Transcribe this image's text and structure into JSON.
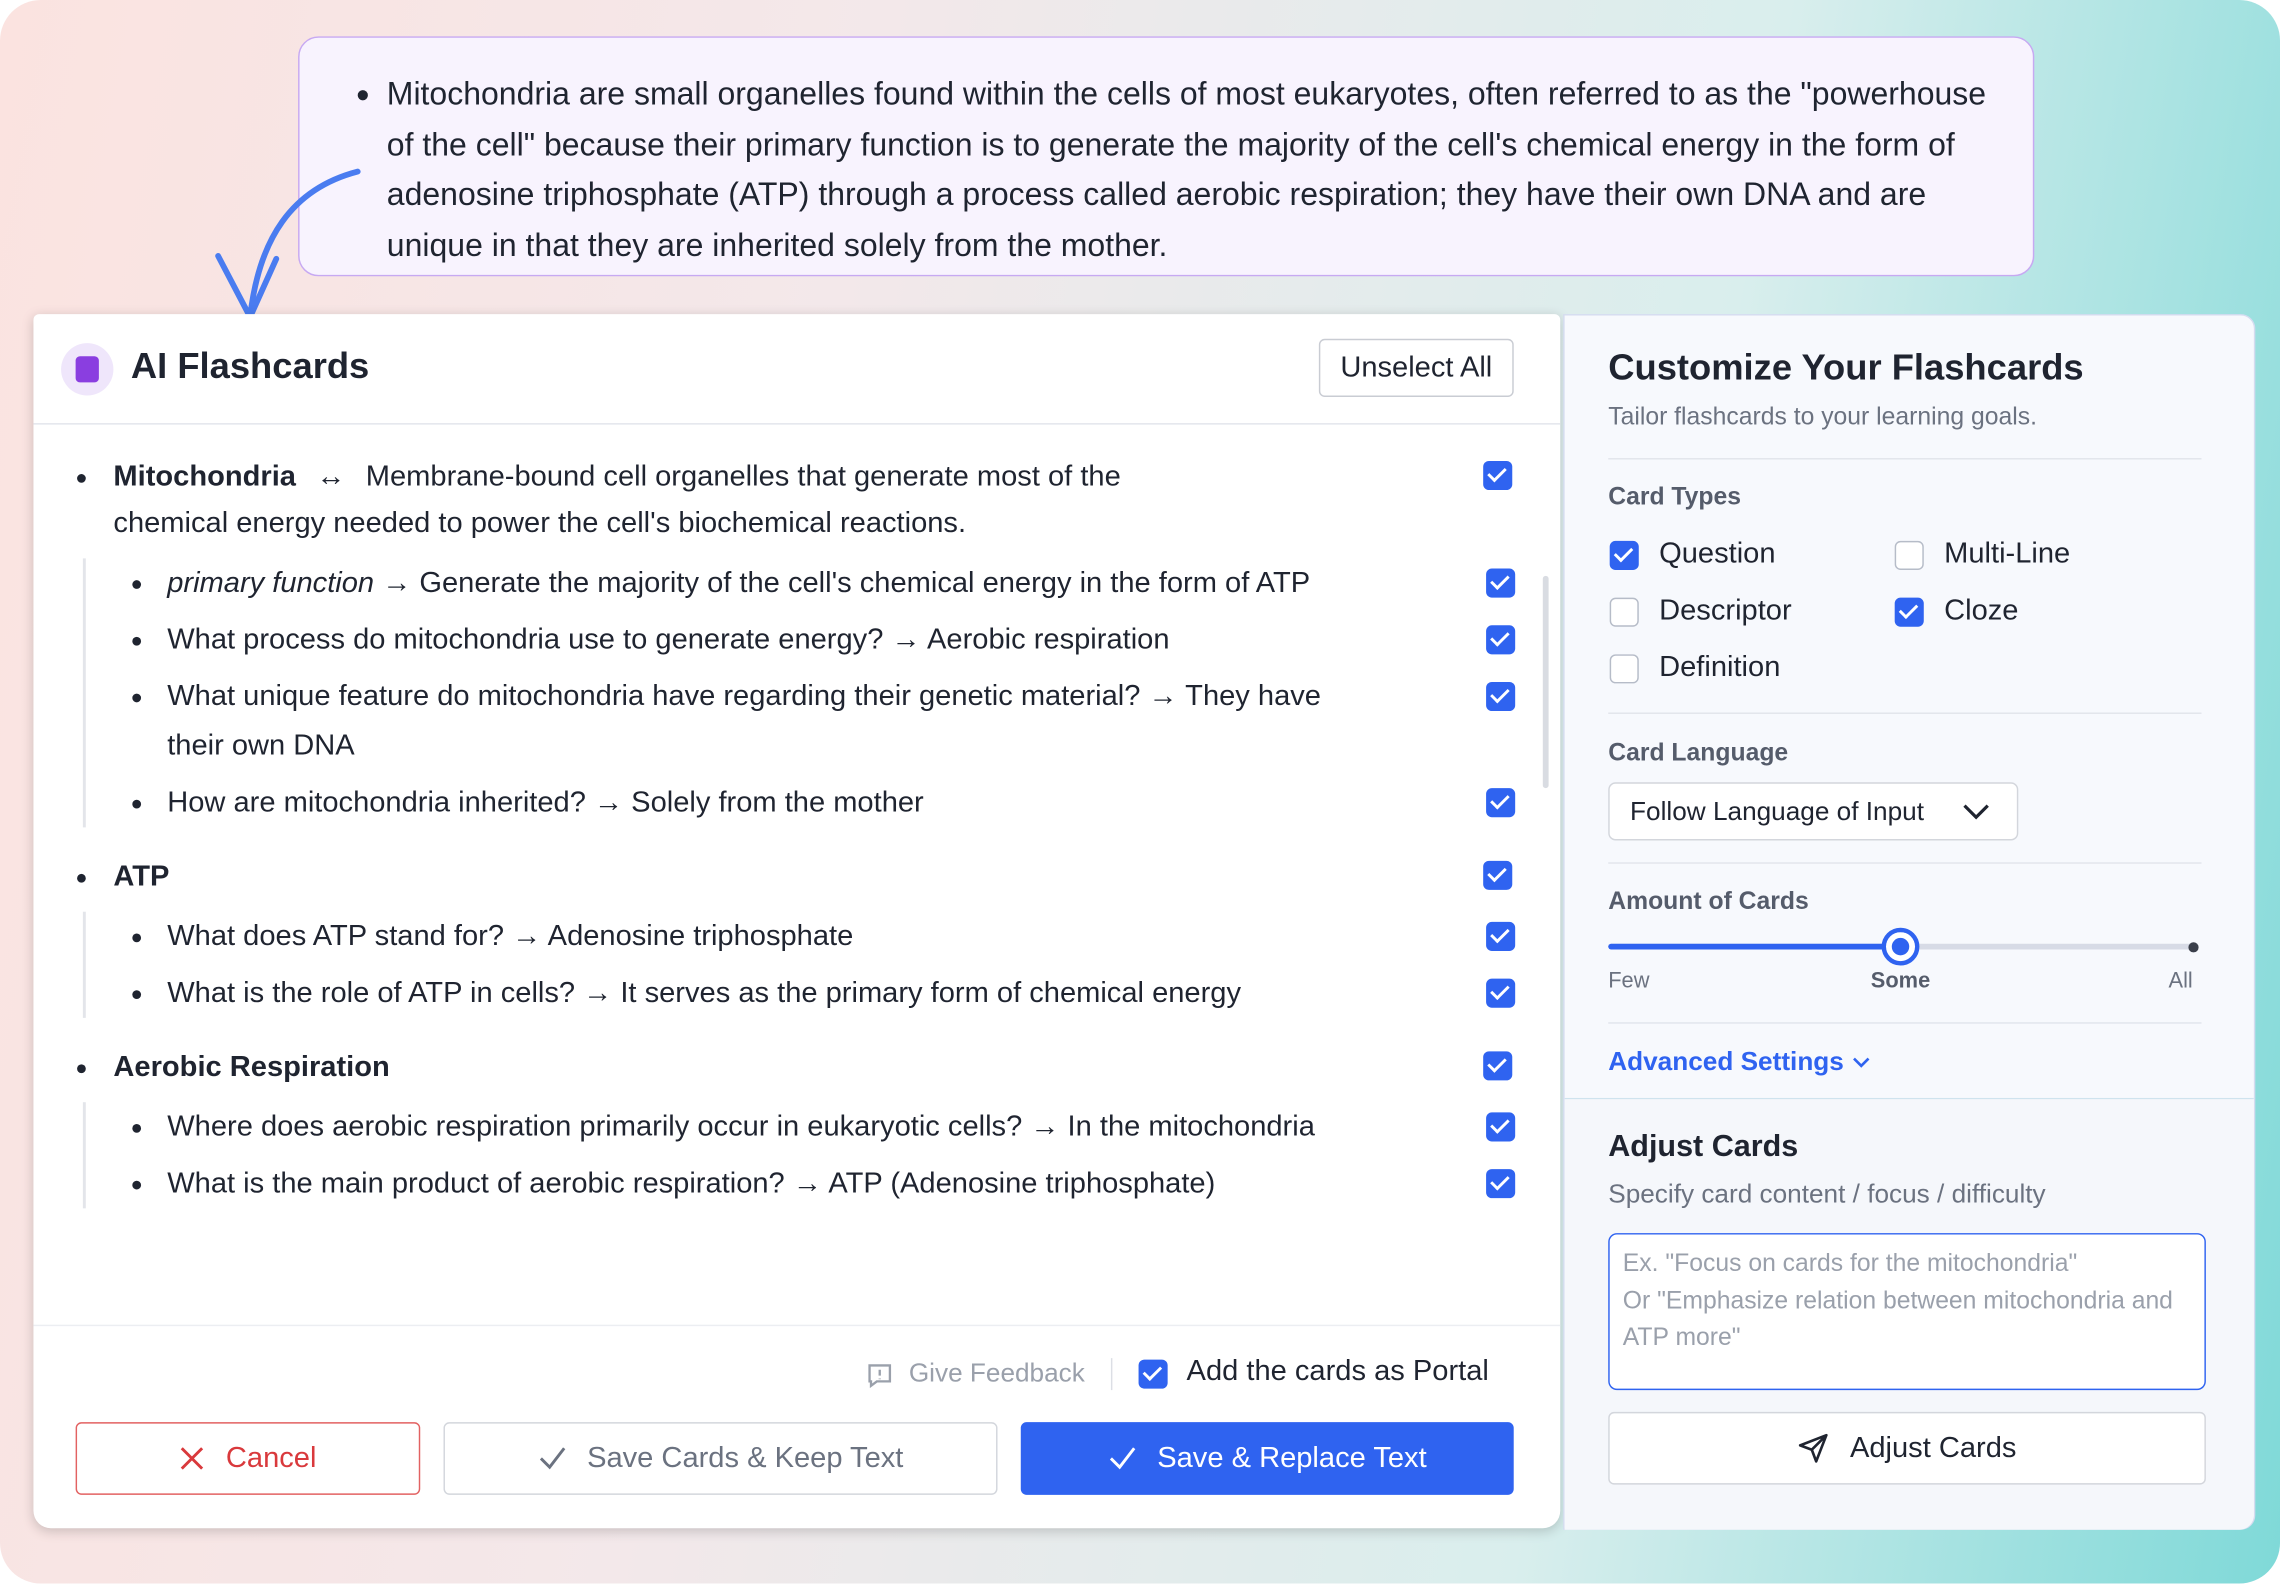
{
  "source_note": {
    "text": "Mitochondria are small organelles found within the cells of most eukaryotes, often referred to as the \"powerhouse of the cell\" because their primary function is to generate the majority of the cell's chemical energy in the form of adenosine triphosphate (ATP) through a process called aerobic respiration; they have their own DNA and are unique in that they are inherited solely from the mother."
  },
  "flashcards_panel": {
    "title": "AI Flashcards",
    "unselect_all": "Unselect All",
    "separator": "↔",
    "arrow": "→",
    "groups": [
      {
        "term": "Mitochondria",
        "definition": "Membrane-bound cell organelles that generate most of the chemical energy needed to power the cell's biochemical reactions.",
        "checked": true,
        "cards": [
          {
            "question": "primary function",
            "italic": true,
            "answer": "Generate the majority of the cell's chemical energy in the form of ATP",
            "checked": true
          },
          {
            "question": "What process do mitochondria use to generate energy?",
            "answer": "Aerobic respiration",
            "checked": true
          },
          {
            "question": "What unique feature do mitochondria have regarding their genetic material?",
            "answer": "They have their own DNA",
            "checked": true
          },
          {
            "question": "How are mitochondria inherited?",
            "answer": "Solely from the mother",
            "checked": true
          }
        ]
      },
      {
        "term": "ATP",
        "checked": true,
        "cards": [
          {
            "question": "What does ATP stand for?",
            "answer": "Adenosine triphosphate",
            "checked": true
          },
          {
            "question": "What is the role of ATP in cells?",
            "answer": "It serves as the primary form of chemical energy",
            "checked": true
          }
        ]
      },
      {
        "term": "Aerobic Respiration",
        "checked": true,
        "cards": [
          {
            "question": "Where does aerobic respiration primarily occur in eukaryotic cells?",
            "answer": "In the mitochondria",
            "checked": true
          },
          {
            "question": "What is the main product of aerobic respiration?",
            "answer": "ATP (Adenosine triphosphate)",
            "checked": true
          }
        ]
      }
    ],
    "footer": {
      "give_feedback": "Give Feedback",
      "add_as_portal": "Add the cards as Portal",
      "portal_checked": true,
      "cancel": "Cancel",
      "save_keep": "Save Cards & Keep Text",
      "save_replace": "Save & Replace Text"
    }
  },
  "customize_panel": {
    "title": "Customize Your Flashcards",
    "subtitle": "Tailor flashcards to your learning goals.",
    "card_types": {
      "label": "Card Types",
      "options": [
        {
          "label": "Question",
          "checked": true
        },
        {
          "label": "Multi-Line",
          "checked": false
        },
        {
          "label": "Descriptor",
          "checked": false
        },
        {
          "label": "Cloze",
          "checked": true
        },
        {
          "label": "Definition",
          "checked": false
        }
      ]
    },
    "card_language": {
      "label": "Card Language",
      "value": "Follow Language of Input"
    },
    "amount": {
      "label": "Amount of Cards",
      "options": [
        "Few",
        "Some",
        "All"
      ],
      "selected": 1
    },
    "advanced_settings": "Advanced Settings",
    "adjust": {
      "title": "Adjust Cards",
      "subtitle": "Specify card content / focus / difficulty",
      "placeholder": [
        "Ex. \"Focus on cards for the mitochondria\"",
        "Or \"Emphasize relation between mitochondria and ATP more\""
      ],
      "button": "Adjust Cards"
    }
  }
}
